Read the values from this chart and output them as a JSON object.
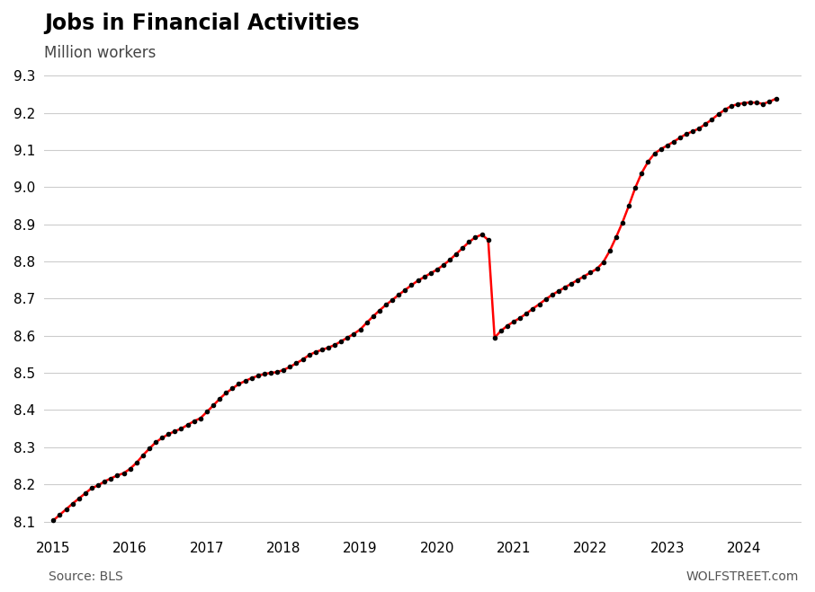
{
  "title": "Jobs in Financial Activities",
  "subtitle": "Million workers",
  "source": "Source: BLS",
  "watermark": "WOLFSTREET.com",
  "line_color": "#FF0000",
  "dot_color": "#000000",
  "background_color": "#ffffff",
  "ylim": [
    8.07,
    9.32
  ],
  "yticks": [
    8.1,
    8.2,
    8.3,
    8.4,
    8.5,
    8.6,
    8.7,
    8.8,
    8.9,
    9.0,
    9.1,
    9.2,
    9.3
  ],
  "xlim_start": 2014.88,
  "xlim_end": 2024.75,
  "xticks": [
    2015,
    2016,
    2017,
    2018,
    2019,
    2020,
    2021,
    2022,
    2023,
    2024
  ],
  "values": [
    8.103,
    8.118,
    8.133,
    8.148,
    8.162,
    8.176,
    8.19,
    8.197,
    8.208,
    8.216,
    8.224,
    8.23,
    8.242,
    8.258,
    8.278,
    8.296,
    8.313,
    8.325,
    8.335,
    8.343,
    8.35,
    8.36,
    8.37,
    8.378,
    8.395,
    8.412,
    8.43,
    8.446,
    8.458,
    8.47,
    8.478,
    8.486,
    8.492,
    8.497,
    8.5,
    8.502,
    8.508,
    8.516,
    8.526,
    8.536,
    8.548,
    8.556,
    8.562,
    8.568,
    8.575,
    8.585,
    8.595,
    8.605,
    8.617,
    8.635,
    8.652,
    8.668,
    8.683,
    8.696,
    8.71,
    8.723,
    8.736,
    8.748,
    8.758,
    8.768,
    8.778,
    8.79,
    8.804,
    8.82,
    8.836,
    8.852,
    8.865,
    8.872,
    8.858,
    8.595,
    8.613,
    8.627,
    8.638,
    8.648,
    8.66,
    8.673,
    8.685,
    8.698,
    8.71,
    8.72,
    8.73,
    8.74,
    8.75,
    8.76,
    8.77,
    8.78,
    8.798,
    8.828,
    8.865,
    8.905,
    8.95,
    8.998,
    9.038,
    9.068,
    9.09,
    9.102,
    9.112,
    9.122,
    9.133,
    9.143,
    9.15,
    9.158,
    9.17,
    9.182,
    9.196,
    9.208,
    9.218,
    9.223,
    9.226,
    9.228,
    9.227,
    9.224,
    9.23,
    9.238
  ],
  "start_year": 2015,
  "start_month": 1
}
